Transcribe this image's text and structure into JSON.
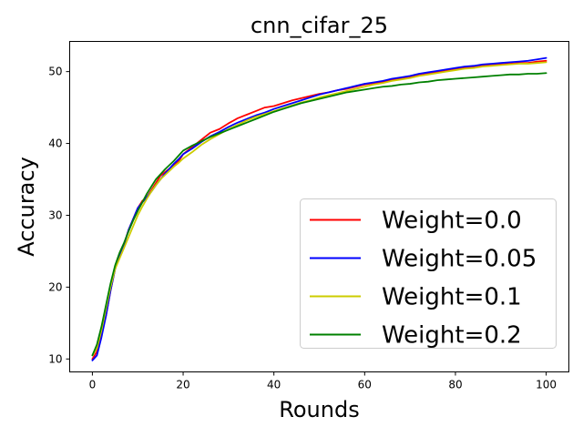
{
  "chart_data": {
    "type": "line",
    "title": "cnn_cifar_25",
    "xlabel": "Rounds",
    "ylabel": "Accuracy",
    "xlim": [
      -5,
      105
    ],
    "ylim": [
      8.2,
      54.2
    ],
    "xticks": [
      0,
      20,
      40,
      60,
      80,
      100
    ],
    "yticks": [
      10,
      20,
      30,
      40,
      50
    ],
    "grid": false,
    "legend_position": "lower-right",
    "x": [
      0,
      1,
      2,
      3,
      4,
      5,
      6,
      7,
      8,
      9,
      10,
      11,
      12,
      13,
      14,
      15,
      16,
      17,
      18,
      19,
      20,
      22,
      24,
      26,
      28,
      30,
      32,
      34,
      36,
      38,
      40,
      42,
      44,
      46,
      48,
      50,
      52,
      54,
      56,
      58,
      60,
      62,
      64,
      66,
      68,
      70,
      72,
      74,
      76,
      78,
      80,
      82,
      84,
      86,
      88,
      90,
      92,
      94,
      96,
      98,
      100
    ],
    "series": [
      {
        "name": "Weight=0.0",
        "color": "#ff0000",
        "values": [
          10.0,
          11.0,
          13.5,
          16.0,
          19.5,
          22.5,
          24.5,
          26.0,
          28.0,
          29.5,
          31.0,
          32.0,
          32.5,
          33.5,
          34.5,
          35.5,
          36.0,
          36.5,
          37.0,
          37.5,
          38.5,
          39.5,
          40.5,
          41.5,
          42.0,
          42.8,
          43.5,
          44.0,
          44.5,
          45.0,
          45.2,
          45.6,
          46.0,
          46.3,
          46.6,
          46.9,
          47.1,
          47.4,
          47.6,
          47.9,
          48.2,
          48.4,
          48.6,
          48.8,
          49.1,
          49.3,
          49.5,
          49.7,
          49.9,
          50.1,
          50.3,
          50.5,
          50.6,
          50.8,
          50.9,
          51.0,
          51.1,
          51.2,
          51.2,
          51.4,
          51.5
        ]
      },
      {
        "name": "Weight=0.05",
        "color": "#0000ff",
        "values": [
          9.8,
          10.5,
          13.0,
          16.0,
          19.5,
          22.5,
          24.5,
          26.0,
          28.0,
          29.5,
          31.0,
          31.8,
          32.5,
          33.3,
          34.2,
          35.0,
          35.8,
          36.5,
          37.2,
          37.8,
          38.5,
          39.3,
          40.2,
          41.0,
          41.6,
          42.3,
          42.9,
          43.4,
          43.9,
          44.3,
          44.8,
          45.2,
          45.6,
          46.0,
          46.4,
          46.8,
          47.1,
          47.4,
          47.7,
          48.0,
          48.3,
          48.5,
          48.7,
          49.0,
          49.2,
          49.4,
          49.7,
          49.9,
          50.1,
          50.3,
          50.5,
          50.7,
          50.8,
          51.0,
          51.1,
          51.2,
          51.3,
          51.4,
          51.5,
          51.7,
          51.9
        ]
      },
      {
        "name": "Weight=0.1",
        "color": "#cccc00",
        "values": [
          10.5,
          11.5,
          14.0,
          17.0,
          20.0,
          22.5,
          24.0,
          25.5,
          27.0,
          28.5,
          30.0,
          31.2,
          32.3,
          33.3,
          34.2,
          35.0,
          35.6,
          36.2,
          36.8,
          37.3,
          37.9,
          38.8,
          39.8,
          40.6,
          41.3,
          42.0,
          42.6,
          43.2,
          43.7,
          44.1,
          44.5,
          44.9,
          45.3,
          45.7,
          46.0,
          46.4,
          46.7,
          47.0,
          47.3,
          47.6,
          47.9,
          48.2,
          48.4,
          48.7,
          48.9,
          49.1,
          49.4,
          49.6,
          49.8,
          50.0,
          50.2,
          50.4,
          50.5,
          50.7,
          50.8,
          50.9,
          51.0,
          51.1,
          51.1,
          51.2,
          51.3
        ]
      },
      {
        "name": "Weight=0.2",
        "color": "#008000",
        "values": [
          10.5,
          12.0,
          14.5,
          17.5,
          20.5,
          23.0,
          24.8,
          26.2,
          27.8,
          29.3,
          30.6,
          31.8,
          33.0,
          34.0,
          35.0,
          35.7,
          36.4,
          37.0,
          37.6,
          38.3,
          39.0,
          39.7,
          40.3,
          40.9,
          41.4,
          41.9,
          42.4,
          42.9,
          43.4,
          43.9,
          44.4,
          44.8,
          45.2,
          45.6,
          45.9,
          46.2,
          46.5,
          46.8,
          47.1,
          47.3,
          47.5,
          47.7,
          47.9,
          48.0,
          48.2,
          48.3,
          48.5,
          48.6,
          48.8,
          48.9,
          49.0,
          49.1,
          49.2,
          49.3,
          49.4,
          49.5,
          49.6,
          49.6,
          49.7,
          49.7,
          49.8
        ]
      }
    ]
  }
}
